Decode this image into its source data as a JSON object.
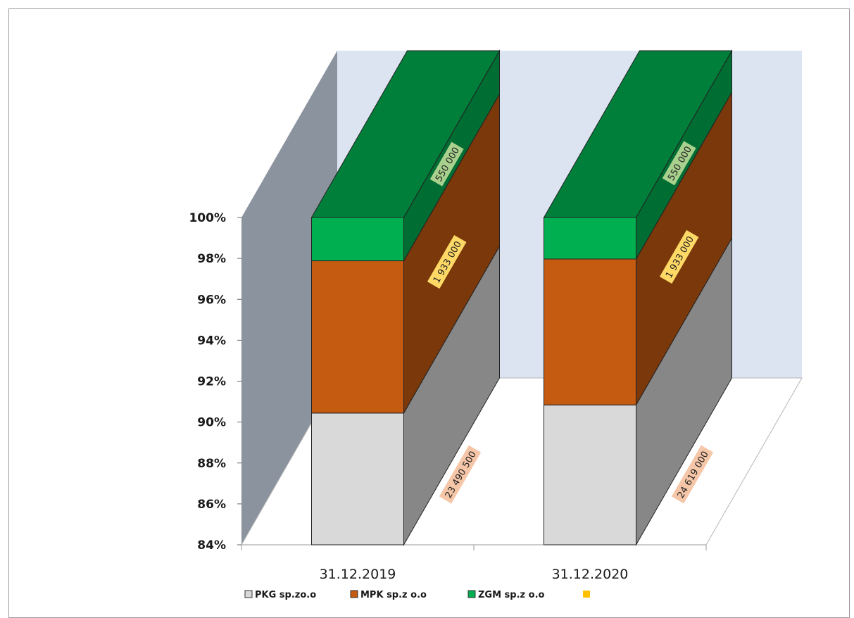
{
  "chart_data": {
    "type": "bar",
    "stacked": "percent",
    "view": "3d-clustered-column",
    "categories": [
      "31.12.2019",
      "31.12.2020"
    ],
    "series": [
      {
        "name": "PKG sp.zo.o",
        "values": [
          23490500,
          24619000
        ],
        "labels": [
          "23 490 500",
          "24 619 000"
        ],
        "color": "#d9d9d9",
        "label_bg": "#f6c6a8"
      },
      {
        "name": "MPK sp.z o.o",
        "values": [
          1933000,
          1933000
        ],
        "labels": [
          "1 933 000",
          "1 933 000"
        ],
        "color": "#c55a11",
        "label_bg": "#ffd966"
      },
      {
        "name": "ZGM sp.z o.o",
        "values": [
          550000,
          550000
        ],
        "labels": [
          "550 000",
          "550 000"
        ],
        "color": "#00b050",
        "label_bg": "#a9d18e"
      }
    ],
    "legend": [
      "PKG sp.zo.o",
      "MPK sp.z o.o",
      "ZGM sp.z o.o",
      ""
    ],
    "legend_extra_color": "#ffc000",
    "legend_position": "bottom",
    "ylim": [
      84,
      100
    ],
    "yticks": [
      "84%",
      "86%",
      "88%",
      "90%",
      "92%",
      "94%",
      "96%",
      "98%",
      "100%"
    ],
    "title": "",
    "xlabel": "",
    "ylabel": "",
    "colors": {
      "back_wall": "#dce3f1",
      "side_wall": "#8b939e",
      "floor": "#ffffff"
    }
  }
}
